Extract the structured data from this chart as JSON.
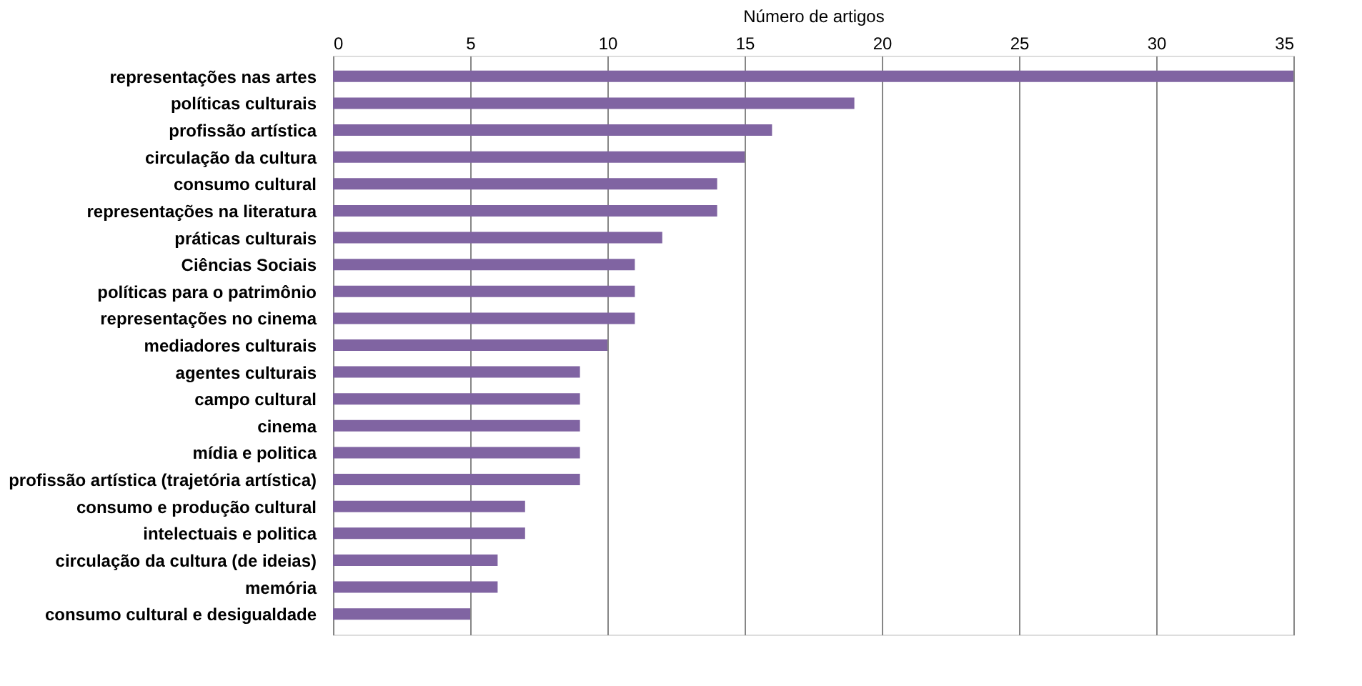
{
  "chart_data": {
    "type": "bar",
    "orientation": "horizontal",
    "xlabel": "Número de artigos",
    "categories": [
      "representações nas artes",
      "políticas culturais",
      "profissão artística",
      "circulação da cultura",
      "consumo cultural",
      "representações na literatura",
      "práticas culturais",
      "Ciências Sociais",
      "políticas para o patrimônio",
      "representações no cinema",
      "mediadores culturais",
      "agentes culturais",
      "campo cultural",
      "cinema",
      "mídia e politica",
      "profissão artística (trajetória artística)",
      "consumo e produção cultural",
      "intelectuais e politica",
      "circulação da cultura (de ideias)",
      "memória",
      "consumo cultural e desigualdade"
    ],
    "values": [
      35,
      19,
      16,
      15,
      14,
      14,
      12,
      11,
      11,
      11,
      10,
      9,
      9,
      9,
      9,
      9,
      7,
      7,
      6,
      6,
      5
    ],
    "color": "#8064a2",
    "xlim": [
      0,
      35
    ],
    "xticks": [
      0,
      5,
      10,
      15,
      20,
      25,
      30,
      35
    ],
    "grid": "x"
  }
}
